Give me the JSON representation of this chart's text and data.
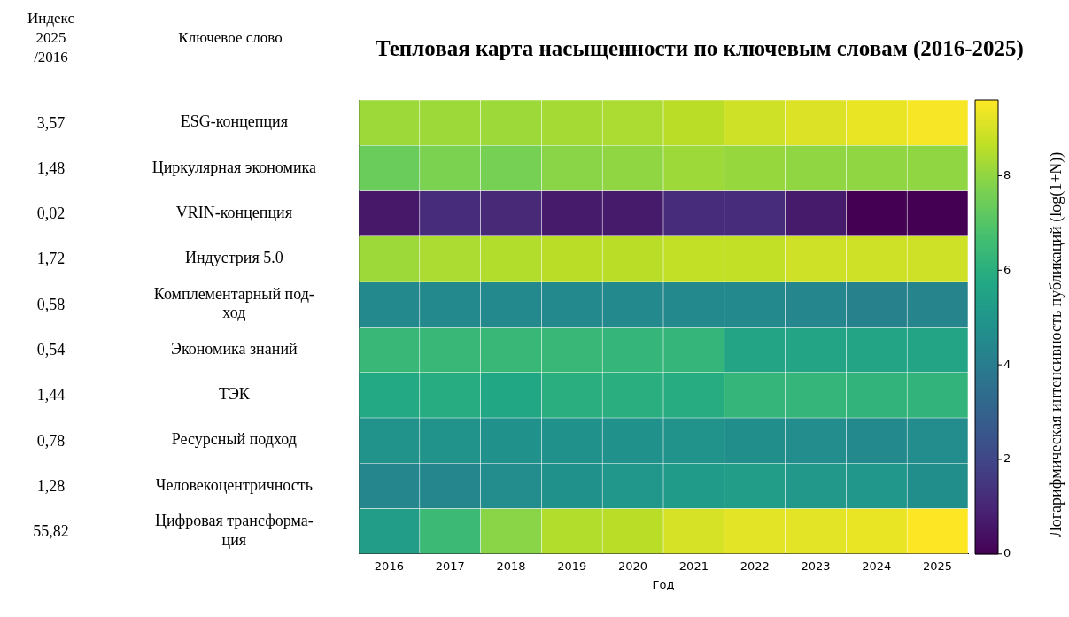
{
  "chart_data": {
    "type": "heatmap",
    "title": "Тепловая карта насыщенности по ключевым словам (2016-2025)",
    "xlabel": "Год",
    "clabel": "Логарифмическая интенсивность публикаций (log(1+N))",
    "annotations": [
      "Индекс 2025 /2016",
      "Ключевое слово"
    ],
    "categories": [
      "2016",
      "2017",
      "2018",
      "2019",
      "2020",
      "2021",
      "2022",
      "2023",
      "2024",
      "2025"
    ],
    "y_categories": [
      "ESG-концепция",
      "Циркулярная экономика",
      "VRIN-концепция",
      "Индустрия 5.0",
      "Комплементарный под-\nход",
      "Экономика знаний",
      "ТЭК",
      "Ресурсный подход",
      "Человекоцентричность",
      "Цифровая трансформа-\nция"
    ],
    "y2_categories": [
      "3,57",
      "1,48",
      "0,02",
      "1,72",
      "0,58",
      "0,54",
      "1,44",
      "0,78",
      "1,28",
      "55,82"
    ],
    "cells": [
      [
        8.2,
        8.2,
        8.2,
        8.3,
        8.4,
        8.6,
        8.9,
        9.1,
        9.3,
        9.5
      ],
      [
        7.4,
        7.7,
        7.6,
        7.9,
        8.0,
        8.2,
        8.1,
        8.0,
        8.0,
        8.0
      ],
      [
        0.6,
        1.2,
        1.1,
        0.7,
        0.7,
        1.2,
        1.2,
        0.7,
        0.0,
        0.0
      ],
      [
        8.2,
        8.4,
        8.5,
        8.6,
        8.6,
        8.7,
        8.7,
        8.9,
        8.9,
        8.9
      ],
      [
        4.5,
        4.5,
        4.5,
        4.5,
        4.5,
        4.5,
        4.5,
        4.4,
        4.2,
        4.3
      ],
      [
        6.4,
        6.4,
        6.4,
        6.4,
        6.3,
        6.3,
        5.6,
        5.6,
        5.6,
        5.6
      ],
      [
        5.8,
        5.9,
        5.7,
        6.0,
        6.0,
        5.9,
        6.3,
        6.3,
        6.2,
        6.2
      ],
      [
        4.9,
        4.9,
        4.8,
        4.8,
        4.8,
        4.9,
        4.7,
        4.6,
        4.5,
        4.6
      ],
      [
        4.4,
        4.4,
        4.6,
        4.8,
        5.0,
        5.2,
        5.3,
        5.1,
        5.0,
        4.7
      ],
      [
        5.3,
        6.5,
        7.9,
        8.5,
        8.6,
        9.0,
        9.2,
        9.2,
        9.3,
        9.6
      ]
    ],
    "clim": [
      0,
      9.6
    ],
    "cticks": [
      0,
      2,
      4,
      6,
      8
    ]
  }
}
